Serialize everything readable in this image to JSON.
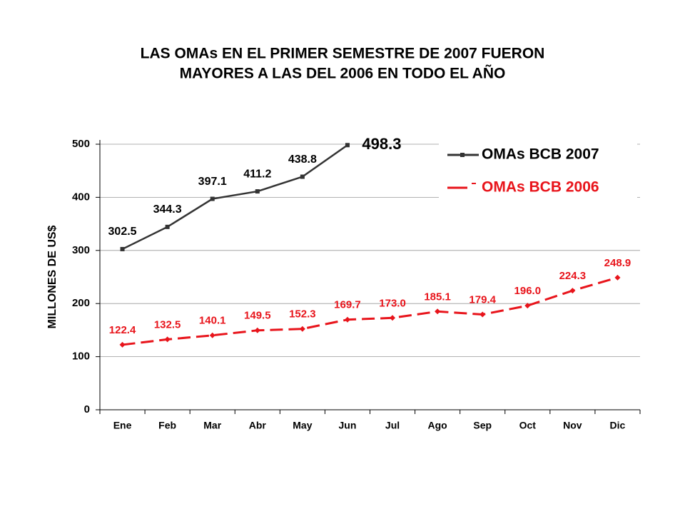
{
  "chart_data": {
    "type": "line",
    "title": [
      "LAS OMAs EN EL PRIMER SEMESTRE DE 2007 FUERON",
      "MAYORES A LAS DEL 2006 EN TODO EL AÑO"
    ],
    "y_label": "MILLONES DE US$",
    "categories": [
      "Ene",
      "Feb",
      "Mar",
      "Abr",
      "May",
      "Jun",
      "Jul",
      "Ago",
      "Sep",
      "Oct",
      "Nov",
      "Dic"
    ],
    "series": [
      {
        "name": "OMAs BCB 2007",
        "color": "#333333",
        "dash": false,
        "values": [
          302.5,
          344.3,
          397.1,
          411.2,
          438.8,
          498.3,
          null,
          null,
          null,
          null,
          null,
          null
        ],
        "value_labels": [
          "302.5",
          "344.3",
          "397.1",
          "411.2",
          "438.8",
          "498.3",
          null,
          null,
          null,
          null,
          null,
          null
        ]
      },
      {
        "name": "OMAs BCB 2006",
        "color": "#e8141b",
        "dash": true,
        "values": [
          122.4,
          132.5,
          140.1,
          149.5,
          152.3,
          169.7,
          173.0,
          185.1,
          179.4,
          196.0,
          224.3,
          248.9
        ],
        "value_labels": [
          "122.4",
          "132.5",
          "140.1",
          "149.5",
          "152.3",
          "169.7",
          "173.0",
          "185.1",
          "179.4",
          "196.0",
          "224.3",
          "248.9"
        ]
      }
    ],
    "ylim": [
      0,
      500
    ],
    "yticks": [
      0,
      100,
      200,
      300,
      400,
      500
    ],
    "grid": true,
    "legend": "upper right"
  }
}
